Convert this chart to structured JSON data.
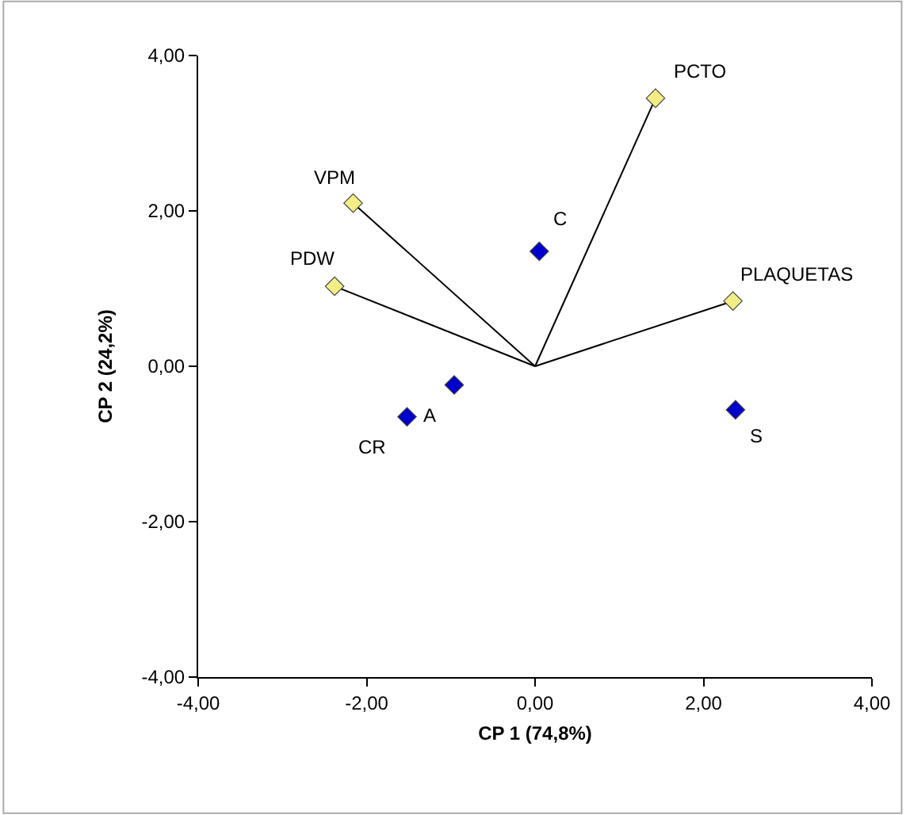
{
  "chart_data": {
    "type": "scatter",
    "xlabel": "CP 1 (74,8%)",
    "ylabel": "CP 2 (24,2%)",
    "xlim": [
      -4,
      4
    ],
    "ylim": [
      -4,
      4
    ],
    "xticks": [
      {
        "value": -4,
        "label": "-4,00"
      },
      {
        "value": -2,
        "label": "-2,00"
      },
      {
        "value": 0,
        "label": "0,00"
      },
      {
        "value": 2,
        "label": "2,00"
      },
      {
        "value": 4,
        "label": "4,00"
      }
    ],
    "yticks": [
      {
        "value": -4,
        "label": "-4,00"
      },
      {
        "value": -2,
        "label": "-2,00"
      },
      {
        "value": 0,
        "label": "0,00"
      },
      {
        "value": 2,
        "label": "2,00"
      },
      {
        "value": 4,
        "label": "4,00"
      }
    ],
    "series": [
      {
        "type": "line",
        "color": "#000000",
        "marker": "none",
        "x": [
          0,
          1.43
        ],
        "values": [
          0,
          3.45
        ]
      },
      {
        "type": "line",
        "color": "#000000",
        "marker": "none",
        "x": [
          0,
          -2.16
        ],
        "values": [
          0,
          2.1
        ]
      },
      {
        "type": "line",
        "color": "#000000",
        "marker": "none",
        "x": [
          0,
          -2.38
        ],
        "values": [
          0,
          1.03
        ]
      },
      {
        "type": "line",
        "color": "#000000",
        "marker": "none",
        "x": [
          0,
          2.35
        ],
        "values": [
          0,
          0.84
        ]
      },
      {
        "color": "#f2ee86",
        "marker": "diamond",
        "x": [
          1.43,
          -2.16,
          -2.38,
          2.35
        ],
        "values": [
          3.45,
          2.1,
          1.03,
          0.84
        ]
      },
      {
        "color": "#0000cc",
        "marker": "diamond",
        "x": [
          0.05,
          -0.96,
          -1.52,
          2.38
        ],
        "values": [
          1.48,
          -0.24,
          -0.65,
          -0.56
        ]
      }
    ],
    "annotations": [
      {
        "text": "PCTO",
        "x": 1.43,
        "y": 3.45
      },
      {
        "text": "VPM",
        "x": -2.16,
        "y": 2.1
      },
      {
        "text": "PDW",
        "x": -2.38,
        "y": 1.03
      },
      {
        "text": "PLAQUETAS",
        "x": 2.35,
        "y": 0.84
      },
      {
        "text": "C",
        "x": 0.05,
        "y": 1.48
      },
      {
        "text": "A",
        "x": -0.96,
        "y": -0.24
      },
      {
        "text": "CR",
        "x": -1.52,
        "y": -0.65
      },
      {
        "text": "S",
        "x": 2.38,
        "y": -0.56
      }
    ]
  }
}
